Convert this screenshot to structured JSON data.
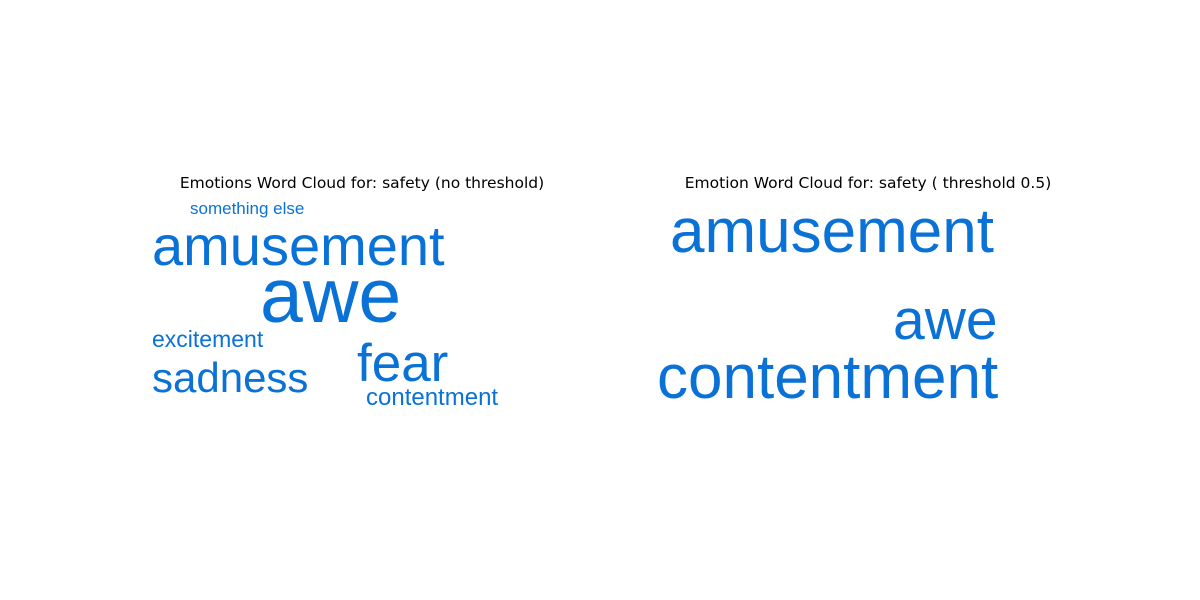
{
  "chart_data": [
    {
      "type": "wordcloud",
      "title": "Emotions Word Cloud for: safety (no threshold)",
      "words": [
        {
          "text": "something else",
          "weight": 0.17
        },
        {
          "text": "amusement",
          "weight": 0.56
        },
        {
          "text": "awe",
          "weight": 0.77
        },
        {
          "text": "excitement",
          "weight": 0.23
        },
        {
          "text": "sadness",
          "weight": 0.42
        },
        {
          "text": "fear",
          "weight": 0.53
        },
        {
          "text": "contentment",
          "weight": 0.24
        }
      ]
    },
    {
      "type": "wordcloud",
      "title": "Emotion Word Cloud for: safety ( threshold 0.5)",
      "words": [
        {
          "text": "amusement",
          "weight": 0.62
        },
        {
          "text": "awe",
          "weight": 0.57
        },
        {
          "text": "contentment",
          "weight": 0.62
        }
      ]
    }
  ],
  "colors": {
    "word": "#0a72d6",
    "title": "#000000"
  }
}
